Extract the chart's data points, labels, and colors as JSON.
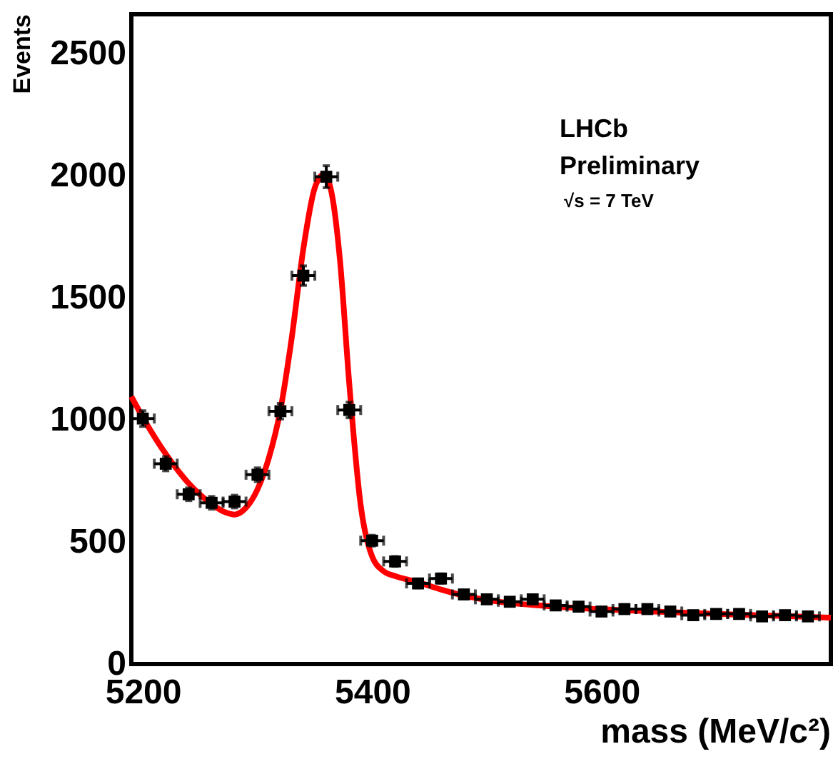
{
  "chart_data": {
    "type": "scatter",
    "xlabel": "mass (MeV/c²)",
    "ylabel": "Events",
    "x": [
      5200,
      5220,
      5240,
      5260,
      5280,
      5300,
      5320,
      5340,
      5360,
      5380,
      5400,
      5420,
      5440,
      5460,
      5480,
      5500,
      5520,
      5540,
      5560,
      5580,
      5600,
      5620,
      5640,
      5660,
      5680,
      5700,
      5720,
      5740,
      5760,
      5780
    ],
    "series": [
      {
        "color": "#000000",
        "marker": "square",
        "values": [
          1005,
          820,
          695,
          660,
          665,
          775,
          1035,
          1590,
          1995,
          1040,
          505,
          420,
          330,
          350,
          285,
          265,
          255,
          265,
          240,
          235,
          215,
          225,
          225,
          215,
          200,
          205,
          205,
          195,
          200,
          195
        ],
        "errors": [
          32,
          29,
          26,
          26,
          26,
          28,
          32,
          40,
          45,
          32,
          22,
          20,
          18,
          19,
          17,
          16,
          16,
          16,
          15,
          15,
          15,
          15,
          15,
          15,
          14,
          14,
          14,
          14,
          14,
          14
        ],
        "xerrors": [
          10,
          10,
          10,
          10,
          10,
          10,
          10,
          10,
          10,
          10,
          10,
          10,
          10,
          10,
          10,
          10,
          10,
          10,
          10,
          10,
          10,
          10,
          10,
          10,
          10,
          10,
          10,
          10,
          10,
          10
        ]
      },
      {
        "type": "line",
        "color": "#ff0000",
        "line_style": "solid",
        "x": [
          5190,
          5200,
          5220,
          5240,
          5260,
          5270,
          5280,
          5290,
          5300,
          5310,
          5320,
          5330,
          5340,
          5350,
          5358,
          5365,
          5372,
          5380,
          5390,
          5400,
          5410,
          5420,
          5440,
          5460,
          5480,
          5500,
          5550,
          5600,
          5650,
          5700,
          5750,
          5800
        ],
        "values": [
          1095,
          1010,
          860,
          740,
          655,
          625,
          612,
          640,
          715,
          845,
          1040,
          1340,
          1700,
          1950,
          2005,
          1920,
          1650,
          1150,
          650,
          440,
          380,
          360,
          335,
          305,
          280,
          262,
          238,
          224,
          214,
          205,
          198,
          190
        ]
      }
    ],
    "xlim": [
      5190,
      5800
    ],
    "xticks": [
      5200,
      5400,
      5600
    ],
    "ylim": [
      0,
      2660
    ],
    "yticks": [
      0,
      500,
      1000,
      1500,
      2000,
      2500
    ],
    "annotations": [
      "LHCb",
      "Preliminary",
      "√s = 7 TeV"
    ]
  }
}
